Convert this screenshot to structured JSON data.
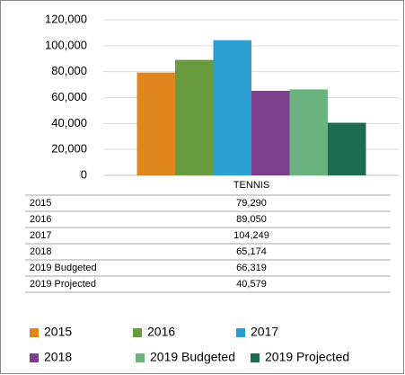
{
  "chart_data": {
    "type": "bar",
    "categories": [
      "TENNIS"
    ],
    "series": [
      {
        "name": "2015",
        "color": "#e0861f",
        "values": [
          79290
        ],
        "value_labels": [
          "79,290"
        ]
      },
      {
        "name": "2016",
        "color": "#6a9a3e",
        "values": [
          89050
        ],
        "value_labels": [
          "89,050"
        ]
      },
      {
        "name": "2017",
        "color": "#2b9fd4",
        "values": [
          104249
        ],
        "value_labels": [
          "104,249"
        ]
      },
      {
        "name": "2018",
        "color": "#7b3f8c",
        "values": [
          65174
        ],
        "value_labels": [
          "65,174"
        ]
      },
      {
        "name": "2019 Budgeted",
        "color": "#6ab37e",
        "values": [
          66319
        ],
        "value_labels": [
          "66,319"
        ]
      },
      {
        "name": "2019 Projected",
        "color": "#1d6b50",
        "values": [
          40579
        ],
        "value_labels": [
          "40,579"
        ]
      }
    ],
    "ylim": [
      0,
      120000
    ],
    "yticks": [
      0,
      {
        "value": 20000,
        "label": "20,000"
      },
      {
        "value": 40000,
        "label": "40,000"
      },
      {
        "value": 60000,
        "label": "60,000"
      },
      {
        "value": 80000,
        "label": "80,000"
      },
      {
        "value": 100000,
        "label": "100,000"
      },
      {
        "value": 120000,
        "label": "120,000"
      }
    ],
    "grid": true
  }
}
